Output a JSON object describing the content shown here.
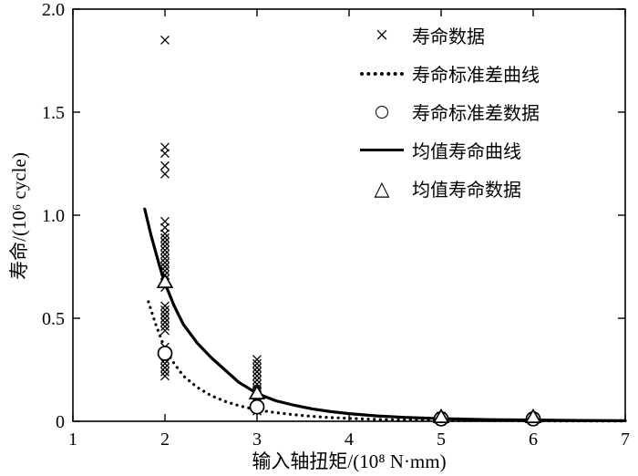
{
  "chart_data": {
    "type": "scatter",
    "title": "",
    "xlabel": "输入轴扭矩/(10⁸ N·mm)",
    "ylabel": "寿命/(10⁶ cycle)",
    "xlim": [
      1,
      7
    ],
    "ylim": [
      0,
      2.0
    ],
    "xticks": [
      1,
      2,
      3,
      4,
      5,
      6,
      7
    ],
    "xtick_labels": [
      "1",
      "2",
      "3",
      "4",
      "5",
      "6",
      "7"
    ],
    "yticks": [
      0,
      0.5,
      1.0,
      1.5,
      2.0
    ],
    "ytick_labels": [
      "0",
      "0.5",
      "1.0",
      "1.5",
      "2.0"
    ],
    "grid": false,
    "legend_position": "upper-right-inside",
    "colors": {
      "foreground": "#000000",
      "background": "#ffffff"
    },
    "legend": [
      {
        "marker": "x",
        "label": "寿命数据"
      },
      {
        "marker": "dotted-line",
        "label": "寿命标准差曲线"
      },
      {
        "marker": "circle",
        "label": "寿命标准差数据"
      },
      {
        "marker": "solid-line",
        "label": "均值寿命曲线"
      },
      {
        "marker": "triangle",
        "label": "均值寿命数据"
      }
    ],
    "series": [
      {
        "name": "寿命数据",
        "type": "scatter",
        "marker": "x",
        "points": [
          [
            2,
            1.85
          ],
          [
            2,
            1.33
          ],
          [
            2,
            1.3
          ],
          [
            2,
            1.24
          ],
          [
            2,
            1.2
          ],
          [
            2,
            0.97
          ],
          [
            2,
            0.94
          ],
          [
            2,
            0.91
          ],
          [
            2,
            0.89
          ],
          [
            2,
            0.87
          ],
          [
            2,
            0.85
          ],
          [
            2,
            0.83
          ],
          [
            2,
            0.81
          ],
          [
            2,
            0.79
          ],
          [
            2,
            0.77
          ],
          [
            2,
            0.75
          ],
          [
            2,
            0.73
          ],
          [
            2,
            0.71
          ],
          [
            2,
            0.69
          ],
          [
            2,
            0.67
          ],
          [
            2,
            0.65
          ],
          [
            2,
            0.56
          ],
          [
            2,
            0.54
          ],
          [
            2,
            0.52
          ],
          [
            2,
            0.5
          ],
          [
            2,
            0.48
          ],
          [
            2,
            0.46
          ],
          [
            2,
            0.44
          ],
          [
            2,
            0.36
          ],
          [
            2,
            0.34
          ],
          [
            2,
            0.32
          ],
          [
            2,
            0.3
          ],
          [
            2,
            0.28
          ],
          [
            2,
            0.26
          ],
          [
            2,
            0.24
          ],
          [
            2,
            0.22
          ],
          [
            3,
            0.3
          ],
          [
            3,
            0.28
          ],
          [
            3,
            0.26
          ],
          [
            3,
            0.24
          ],
          [
            3,
            0.22
          ],
          [
            3,
            0.2
          ],
          [
            3,
            0.18
          ],
          [
            3,
            0.16
          ],
          [
            3,
            0.15
          ],
          [
            3,
            0.14
          ],
          [
            3,
            0.13
          ],
          [
            3,
            0.12
          ],
          [
            3,
            0.11
          ],
          [
            3,
            0.1
          ],
          [
            3,
            0.09
          ],
          [
            3,
            0.08
          ],
          [
            3,
            0.07
          ],
          [
            3,
            0.06
          ],
          [
            3,
            0.05
          ],
          [
            5,
            0.025
          ],
          [
            5,
            0.018
          ],
          [
            5,
            0.012
          ],
          [
            5,
            0.008
          ],
          [
            6,
            0.022
          ],
          [
            6,
            0.016
          ],
          [
            6,
            0.01
          ],
          [
            6,
            0.006
          ]
        ]
      },
      {
        "name": "寿命标准差曲线",
        "type": "line",
        "style": "dotted",
        "points": [
          [
            1.82,
            0.58
          ],
          [
            1.9,
            0.47
          ],
          [
            2.0,
            0.35
          ],
          [
            2.1,
            0.28
          ],
          [
            2.2,
            0.22
          ],
          [
            2.35,
            0.165
          ],
          [
            2.5,
            0.125
          ],
          [
            2.65,
            0.097
          ],
          [
            2.8,
            0.076
          ],
          [
            3.0,
            0.055
          ],
          [
            3.2,
            0.042
          ],
          [
            3.4,
            0.032
          ],
          [
            3.6,
            0.024
          ],
          [
            3.8,
            0.018
          ],
          [
            4.0,
            0.014
          ],
          [
            4.3,
            0.009
          ],
          [
            4.6,
            0.006
          ],
          [
            5.0,
            0.004
          ],
          [
            5.5,
            0.003
          ],
          [
            6.0,
            0.002
          ],
          [
            6.5,
            0.0015
          ],
          [
            7.0,
            0.001
          ]
        ]
      },
      {
        "name": "均值寿命曲线",
        "type": "line",
        "style": "solid",
        "points": [
          [
            1.78,
            1.03
          ],
          [
            1.85,
            0.9
          ],
          [
            1.95,
            0.74
          ],
          [
            2.0,
            0.67
          ],
          [
            2.1,
            0.56
          ],
          [
            2.2,
            0.47
          ],
          [
            2.35,
            0.38
          ],
          [
            2.5,
            0.31
          ],
          [
            2.65,
            0.25
          ],
          [
            2.8,
            0.19
          ],
          [
            3.0,
            0.135
          ],
          [
            3.2,
            0.1
          ],
          [
            3.4,
            0.078
          ],
          [
            3.6,
            0.06
          ],
          [
            3.8,
            0.047
          ],
          [
            4.0,
            0.037
          ],
          [
            4.3,
            0.026
          ],
          [
            4.6,
            0.019
          ],
          [
            5.0,
            0.013
          ],
          [
            5.5,
            0.008
          ],
          [
            6.0,
            0.006
          ],
          [
            6.5,
            0.004
          ],
          [
            7.0,
            0.003
          ]
        ]
      },
      {
        "name": "寿命标准差数据",
        "type": "scatter",
        "marker": "circle",
        "points": [
          [
            2,
            0.33
          ],
          [
            3,
            0.07
          ],
          [
            5,
            0.012
          ],
          [
            6,
            0.012
          ]
        ]
      },
      {
        "name": "均值寿命数据",
        "type": "scatter",
        "marker": "triangle",
        "points": [
          [
            2,
            0.67
          ],
          [
            3,
            0.13
          ],
          [
            5,
            0.015
          ],
          [
            6,
            0.015
          ]
        ]
      }
    ]
  }
}
